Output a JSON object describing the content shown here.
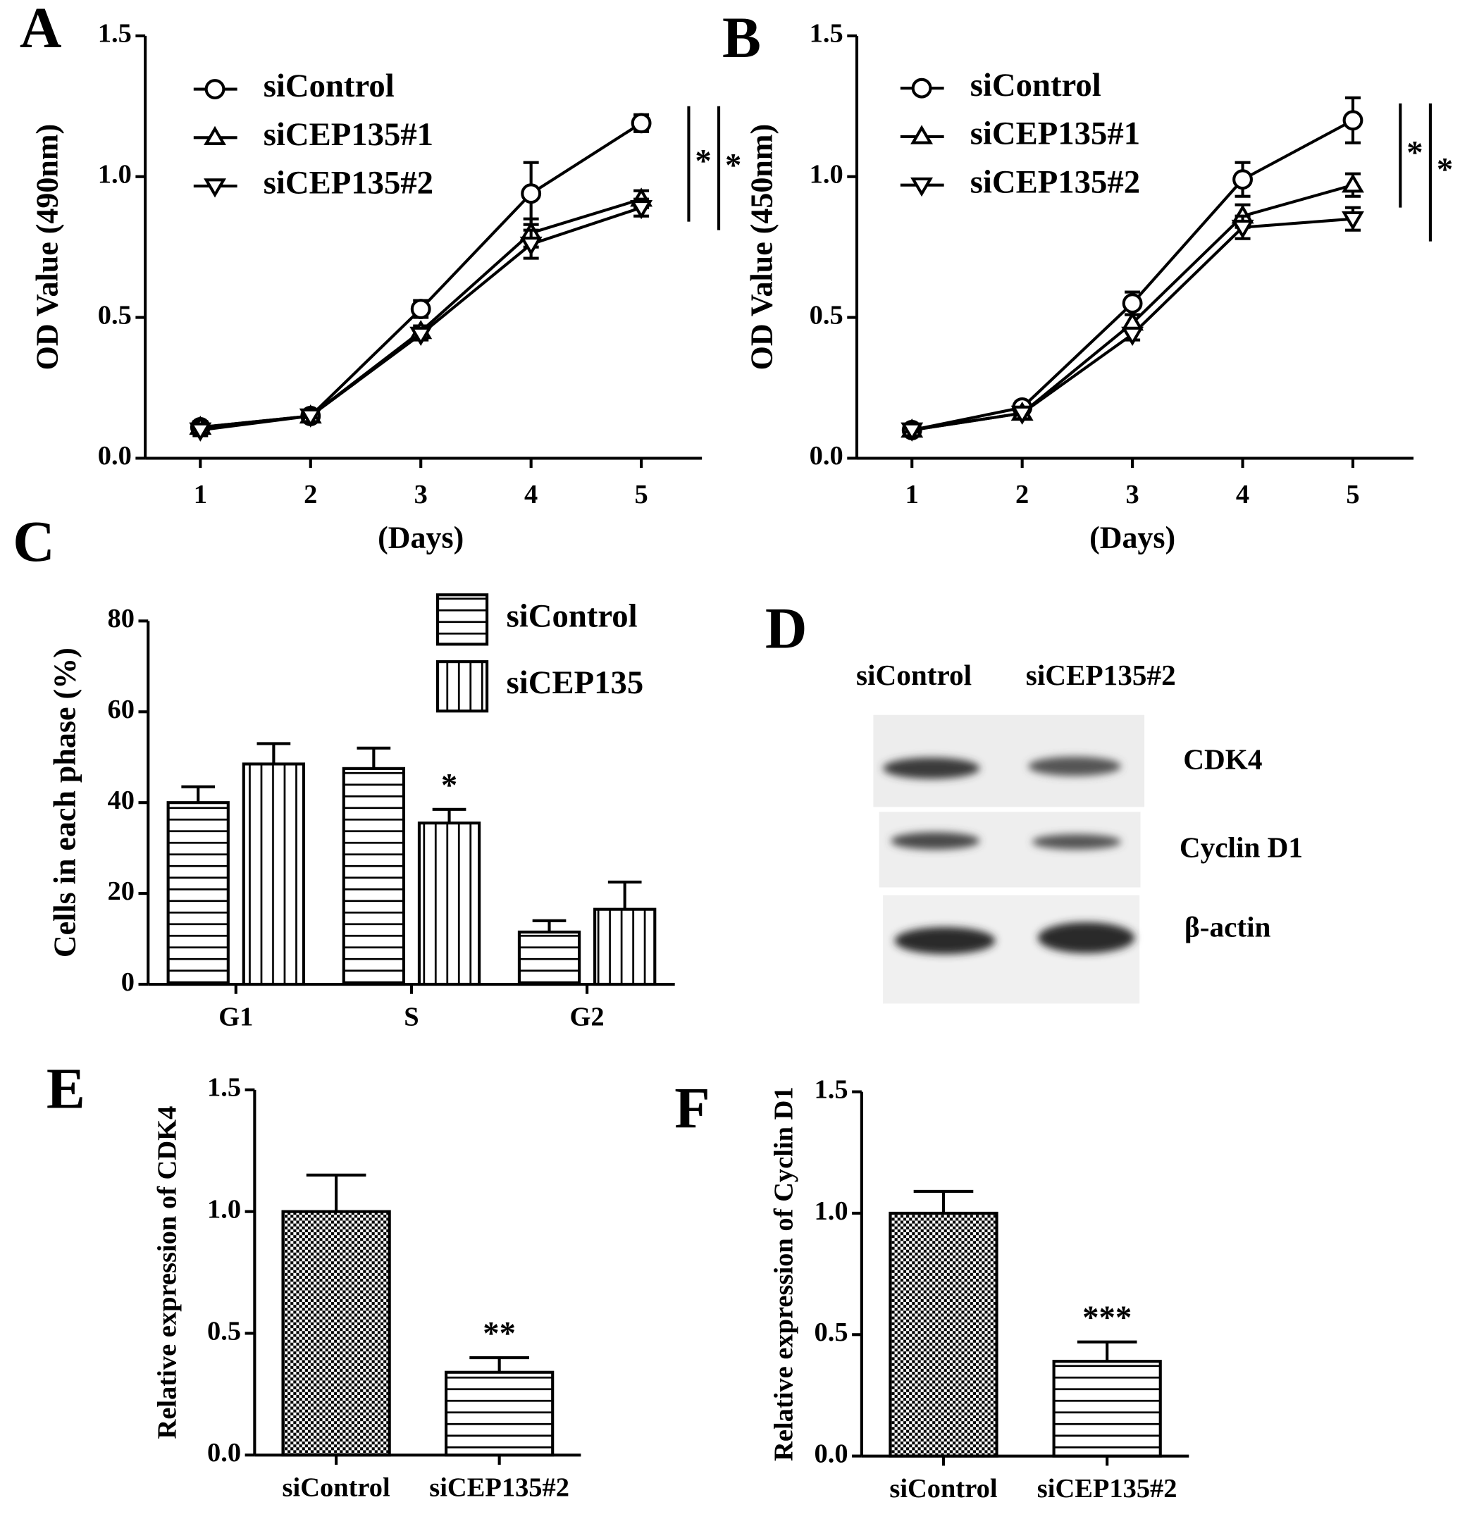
{
  "chart_data": [
    {
      "type": "line",
      "panel": "A",
      "ylabel": "OD Value (490nm)",
      "xlabel": "(Days)",
      "x": [
        1,
        2,
        3,
        4,
        5
      ],
      "xlim": [
        0.5,
        5.55
      ],
      "xticks": [
        1,
        2,
        3,
        4,
        5
      ],
      "ylim": [
        0,
        1.5
      ],
      "yticks": [
        {
          "value": 0,
          "label": "0.0"
        },
        0.5,
        {
          "value": 1,
          "label": "1.0"
        },
        1.5
      ],
      "series": [
        {
          "name": "siControl",
          "marker": "circle",
          "color": "#000000",
          "values": [
            0.11,
            0.15,
            0.53,
            0.94,
            1.19
          ],
          "errors": [
            0.02,
            0.02,
            0.03,
            0.11,
            0.03
          ]
        },
        {
          "name": "siCEP135#1",
          "marker": "triangle-up",
          "color": "#000000",
          "values": [
            0.11,
            0.15,
            0.45,
            0.8,
            0.92
          ],
          "errors": [
            0.02,
            0.02,
            0.02,
            0.05,
            0.03
          ],
          "significance": "*"
        },
        {
          "name": "siCEP135#2",
          "marker": "triangle-down",
          "color": "#000000",
          "values": [
            0.1,
            0.15,
            0.44,
            0.76,
            0.89
          ],
          "errors": [
            0.02,
            0.02,
            0.02,
            0.05,
            0.03
          ],
          "significance": "*"
        }
      ]
    },
    {
      "type": "line",
      "panel": "B",
      "ylabel": "OD Value (450nm)",
      "xlabel": "(Days)",
      "x": [
        1,
        2,
        3,
        4,
        5
      ],
      "xlim": [
        0.5,
        5.55
      ],
      "xticks": [
        1,
        2,
        3,
        4,
        5
      ],
      "ylim": [
        0,
        1.5
      ],
      "yticks": [
        {
          "value": 0,
          "label": "0.0"
        },
        0.5,
        {
          "value": 1,
          "label": "1.0"
        },
        1.5
      ],
      "series": [
        {
          "name": "siControl",
          "marker": "circle",
          "color": "#000000",
          "values": [
            0.1,
            0.18,
            0.55,
            0.99,
            1.2
          ],
          "errors": [
            0.02,
            0.02,
            0.04,
            0.06,
            0.08
          ]
        },
        {
          "name": "siCEP135#1",
          "marker": "triangle-up",
          "color": "#000000",
          "values": [
            0.1,
            0.16,
            0.48,
            0.86,
            0.97
          ],
          "errors": [
            0.02,
            0.02,
            0.03,
            0.04,
            0.04
          ],
          "significance": "*"
        },
        {
          "name": "siCEP135#2",
          "marker": "triangle-down",
          "color": "#000000",
          "values": [
            0.1,
            0.16,
            0.44,
            0.82,
            0.85
          ],
          "errors": [
            0.02,
            0.02,
            0.02,
            0.04,
            0.04
          ],
          "significance": "*"
        }
      ]
    },
    {
      "type": "bar",
      "panel": "C",
      "ylabel": "Cells in each phase (%)",
      "categories": [
        "G1",
        "S",
        "G2"
      ],
      "ylim": [
        0,
        80
      ],
      "yticks": [
        0,
        20,
        40,
        60,
        80
      ],
      "series": [
        {
          "name": "siControl",
          "pattern": "horizontal",
          "color": "#000000",
          "values": [
            40,
            47.5,
            11.5
          ],
          "errors": [
            3.5,
            4.5,
            2.5
          ]
        },
        {
          "name": "siCEP135",
          "pattern": "vertical",
          "color": "#000000",
          "values": [
            48.5,
            35.5,
            16.5
          ],
          "errors": [
            4.5,
            3,
            6
          ],
          "significance": [
            null,
            "*",
            null
          ]
        }
      ]
    },
    {
      "type": "bar",
      "panel": "E",
      "ylabel": "Relative expression of CDK4",
      "categories": [
        "siControl",
        "siCEP135#2"
      ],
      "values": [
        1.0,
        0.34
      ],
      "errors": [
        0.15,
        0.06
      ],
      "patterns": [
        "checker",
        "horizontal"
      ],
      "color": "#000000",
      "significance": [
        null,
        "**"
      ],
      "ylim": [
        0,
        1.5
      ],
      "yticks": [
        {
          "value": 0,
          "label": "0.0"
        },
        0.5,
        {
          "value": 1,
          "label": "1.0"
        },
        1.5
      ]
    },
    {
      "type": "bar",
      "panel": "F",
      "ylabel": "Relative expression of Cyclin D1",
      "categories": [
        "siControl",
        "siCEP135#2"
      ],
      "values": [
        1.0,
        0.39
      ],
      "errors": [
        0.09,
        0.08
      ],
      "patterns": [
        "checker",
        "horizontal"
      ],
      "color": "#000000",
      "significance": [
        null,
        "***"
      ],
      "ylim": [
        0,
        1.5
      ],
      "yticks": [
        {
          "value": 0,
          "label": "0.0"
        },
        0.5,
        {
          "value": 1,
          "label": "1.0"
        },
        1.5
      ]
    }
  ],
  "blot": {
    "panel": "D",
    "lanes": [
      "siControl",
      "siCEP135#2"
    ],
    "bands": [
      "CDK4",
      "Cyclin D1",
      "β-actin"
    ]
  }
}
